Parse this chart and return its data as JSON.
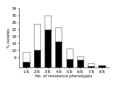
{
  "categories": [
    "1-R",
    "2-R",
    "3-R",
    "4-R",
    "5-R",
    "6-R",
    "7-R",
    "8-R"
  ],
  "total_values": [
    9.0,
    25.0,
    30.0,
    23.0,
    11.0,
    6.5,
    2.5,
    1.5
  ],
  "black_values": [
    3.5,
    10.0,
    22.0,
    15.0,
    5.0,
    4.5,
    1.0,
    1.5
  ],
  "bar_color_black": "#000000",
  "bar_color_white": "#ffffff",
  "bar_edge_color": "#555555",
  "xlabel": "No. of resistance phenotypes",
  "ylabel": "% isolates",
  "ylim": [
    0,
    34
  ],
  "yticks": [
    6,
    10,
    14,
    18,
    22,
    26,
    30,
    34
  ],
  "title": "",
  "bar_width": 0.6,
  "background_color": "#ffffff",
  "xlabel_fontsize": 4.0,
  "ylabel_fontsize": 4.0,
  "tick_fontsize": 4.0,
  "linewidth": 0.4
}
